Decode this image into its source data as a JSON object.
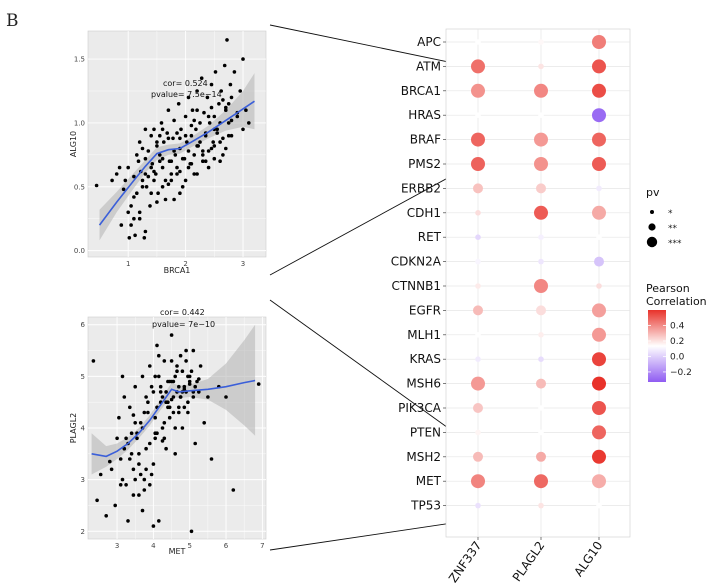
{
  "panel_label": "B",
  "chart_data": [
    {
      "type": "scatter",
      "id": "brca1-alg10",
      "xlabel": "BRCA1",
      "ylabel": "ALG10",
      "xlim": [
        0.3,
        3.4
      ],
      "ylim": [
        -0.05,
        1.72
      ],
      "xticks": [
        1,
        2,
        3
      ],
      "yticks": [
        0.0,
        0.5,
        1.0,
        1.5
      ],
      "annotations": [
        "cor= 0.524",
        "pvalue= 7.5e−14"
      ],
      "smooth_fit": {
        "x": [
          0.5,
          0.8,
          1.1,
          1.3,
          1.5,
          1.7,
          1.9,
          2.1,
          2.4,
          2.7,
          3.0,
          3.2
        ],
        "y": [
          0.2,
          0.38,
          0.55,
          0.66,
          0.76,
          0.79,
          0.8,
          0.85,
          0.93,
          1.02,
          1.11,
          1.17
        ],
        "ci_lower": [
          0.08,
          0.3,
          0.49,
          0.61,
          0.71,
          0.75,
          0.76,
          0.81,
          0.88,
          0.94,
          0.97,
          0.95
        ],
        "ci_upper": [
          0.32,
          0.46,
          0.61,
          0.71,
          0.81,
          0.83,
          0.84,
          0.89,
          0.98,
          1.1,
          1.25,
          1.39
        ],
        "color": "#3b5fd9"
      },
      "points": {
        "x": [
          0.45,
          0.72,
          0.8,
          0.85,
          0.88,
          0.92,
          0.95,
          1.0,
          1.02,
          1.05,
          1.1,
          1.12,
          1.15,
          1.18,
          1.2,
          1.22,
          1.25,
          1.28,
          1.3,
          1.32,
          1.35,
          1.38,
          1.4,
          1.42,
          1.45,
          1.48,
          1.5,
          1.52,
          1.55,
          1.58,
          1.6,
          1.62,
          1.65,
          1.68,
          1.7,
          1.72,
          1.75,
          1.78,
          1.8,
          1.82,
          1.85,
          1.88,
          1.9,
          1.92,
          1.95,
          1.98,
          2.0,
          2.02,
          2.05,
          2.08,
          2.1,
          2.12,
          2.15,
          2.18,
          2.2,
          2.22,
          2.25,
          2.28,
          2.3,
          2.32,
          2.35,
          2.38,
          2.4,
          2.42,
          2.45,
          2.48,
          2.5,
          2.52,
          2.55,
          2.58,
          2.6,
          2.62,
          2.65,
          2.68,
          2.7,
          2.72,
          2.75,
          2.78,
          2.8,
          2.85,
          2.9,
          2.95,
          3.0,
          3.05,
          3.1,
          1.05,
          1.1,
          1.2,
          1.25,
          1.35,
          1.45,
          1.55,
          1.65,
          1.75,
          1.85,
          1.95,
          2.05,
          2.15,
          2.25,
          2.35,
          2.45,
          2.55,
          2.65,
          2.75,
          1.3,
          1.4,
          1.5,
          1.6,
          1.7,
          1.8,
          1.9,
          2.0,
          2.1,
          2.2,
          2.3,
          2.4,
          2.5,
          2.6,
          2.7,
          1.15,
          1.3,
          1.45,
          1.6,
          1.75,
          1.9,
          2.05,
          2.2,
          2.35,
          2.5,
          2.65,
          2.8,
          1.0,
          1.2,
          1.4,
          1.6,
          1.8,
          2.0,
          2.2,
          2.4,
          2.6,
          2.8,
          3.0,
          1.1,
          1.3,
          1.5,
          1.7,
          1.9,
          2.1,
          2.3,
          2.5,
          2.7,
          2.9,
          1.25,
          1.55,
          1.85,
          2.15,
          2.45,
          2.75
        ],
        "y": [
          0.51,
          0.55,
          0.6,
          0.65,
          0.2,
          0.48,
          0.55,
          0.65,
          0.1,
          0.2,
          0.58,
          0.12,
          0.45,
          0.7,
          0.85,
          0.62,
          0.55,
          0.1,
          0.72,
          0.5,
          0.78,
          0.35,
          0.9,
          0.68,
          0.95,
          0.6,
          0.82,
          0.45,
          0.75,
          1.0,
          0.65,
          0.85,
          0.4,
          0.92,
          1.1,
          0.7,
          0.55,
          0.88,
          1.02,
          0.75,
          0.6,
          1.15,
          0.8,
          0.95,
          0.5,
          0.72,
          1.05,
          0.85,
          1.2,
          0.68,
          0.9,
          1.1,
          0.75,
          0.95,
          1.25,
          0.82,
          1.0,
          1.35,
          0.78,
          1.08,
          0.9,
          1.2,
          0.65,
          1.0,
          1.3,
          0.85,
          1.05,
          1.4,
          0.92,
          1.15,
          1.0,
          1.25,
          0.88,
          1.45,
          1.1,
          1.65,
          1.0,
          1.3,
          1.2,
          1.4,
          1.05,
          1.25,
          1.5,
          1.1,
          1.0,
          0.35,
          0.42,
          0.3,
          0.5,
          0.58,
          0.62,
          0.7,
          0.55,
          0.6,
          0.65,
          0.72,
          0.78,
          0.6,
          0.85,
          0.7,
          0.8,
          0.95,
          0.75,
          0.9,
          0.95,
          0.65,
          0.85,
          0.72,
          0.88,
          0.78,
          0.62,
          0.9,
          0.98,
          0.82,
          0.75,
          1.05,
          0.95,
          0.85,
          1.12,
          0.75,
          0.6,
          0.55,
          0.95,
          0.7,
          0.88,
          0.65,
          1.1,
          0.92,
          0.82,
          1.18,
          1.02,
          0.3,
          0.25,
          0.45,
          0.5,
          0.4,
          0.55,
          0.6,
          0.78,
          0.7,
          0.9,
          0.95,
          0.25,
          0.15,
          0.38,
          0.52,
          0.45,
          0.68,
          0.7,
          0.72,
          0.8,
          1.08,
          0.8,
          0.9,
          0.92,
          1.02,
          1.12,
          1.15
        ]
      }
    },
    {
      "type": "scatter",
      "id": "met-plagl2",
      "xlabel": "MET",
      "ylabel": "PLAGL2",
      "xlim": [
        2.2,
        7.1
      ],
      "ylim": [
        1.85,
        6.15
      ],
      "xticks": [
        3,
        4,
        5,
        6,
        7
      ],
      "yticks": [
        2,
        3,
        4,
        5,
        6
      ],
      "annotations": [
        "cor= 0.442",
        "pvalue= 7e−10"
      ],
      "smooth_fit": {
        "x": [
          2.3,
          2.7,
          3.0,
          3.3,
          3.6,
          3.9,
          4.2,
          4.5,
          4.7,
          5.0,
          5.5,
          6.0,
          6.5,
          6.8
        ],
        "y": [
          3.5,
          3.45,
          3.55,
          3.7,
          3.9,
          4.15,
          4.45,
          4.75,
          4.7,
          4.72,
          4.75,
          4.8,
          4.88,
          4.92
        ],
        "ci_lower": [
          3.1,
          3.25,
          3.4,
          3.58,
          3.8,
          4.05,
          4.35,
          4.62,
          4.58,
          4.6,
          4.55,
          4.35,
          4.05,
          3.85
        ],
        "ci_upper": [
          3.9,
          3.65,
          3.7,
          3.82,
          4.0,
          4.25,
          4.55,
          4.88,
          4.82,
          4.84,
          4.95,
          5.25,
          5.7,
          6.0
        ],
        "color": "#3b5fd9"
      },
      "points": {
        "x": [
          2.35,
          2.45,
          2.55,
          2.7,
          2.85,
          2.95,
          3.0,
          3.05,
          3.1,
          3.15,
          3.2,
          3.25,
          3.3,
          3.35,
          3.4,
          3.45,
          3.5,
          3.55,
          3.6,
          3.65,
          3.7,
          3.75,
          3.8,
          3.85,
          3.9,
          3.95,
          4.0,
          4.05,
          4.1,
          4.15,
          4.2,
          4.25,
          4.3,
          4.35,
          4.4,
          4.45,
          4.5,
          4.55,
          4.6,
          4.65,
          4.7,
          4.75,
          4.8,
          4.85,
          4.9,
          4.95,
          5.0,
          5.05,
          5.1,
          5.15,
          5.2,
          5.3,
          5.4,
          5.5,
          5.6,
          5.8,
          6.0,
          6.2,
          6.9,
          3.2,
          3.4,
          3.6,
          3.8,
          4.0,
          4.2,
          4.4,
          4.6,
          4.8,
          5.0,
          3.3,
          3.5,
          3.7,
          3.9,
          4.1,
          4.3,
          4.5,
          4.7,
          4.9,
          5.1,
          3.1,
          3.45,
          3.75,
          4.05,
          4.35,
          4.65,
          4.95,
          5.25,
          3.55,
          3.85,
          4.15,
          4.45,
          4.75,
          5.05,
          3.35,
          3.65,
          3.95,
          4.25,
          4.55,
          4.85,
          3.25,
          3.7,
          4.1,
          4.5,
          4.9,
          3.9,
          4.3,
          4.7,
          5.1,
          3.5,
          4.0,
          4.4,
          4.8,
          3.8,
          4.2,
          4.6,
          5.0,
          3.6,
          4.05,
          4.45,
          4.85,
          4.15,
          4.55,
          4.95,
          3.75,
          4.35,
          4.75,
          5.15,
          2.8,
          3.15,
          3.45,
          4.25,
          4.65,
          5.25,
          4.05,
          4.5
        ],
        "y": [
          5.3,
          2.6,
          3.1,
          2.3,
          3.2,
          2.5,
          3.8,
          4.2,
          3.4,
          3.0,
          4.6,
          2.9,
          3.7,
          4.4,
          3.5,
          2.7,
          4.8,
          3.9,
          3.3,
          4.1,
          5.0,
          2.8,
          3.6,
          4.3,
          5.2,
          3.1,
          4.7,
          3.8,
          5.6,
          2.2,
          4.5,
          4.0,
          5.3,
          3.6,
          4.9,
          4.2,
          5.8,
          4.6,
          3.5,
          5.1,
          4.4,
          5.4,
          4.0,
          4.8,
          5.5,
          4.3,
          5.0,
          2.0,
          4.7,
          3.7,
          4.9,
          5.2,
          4.1,
          4.6,
          3.4,
          4.8,
          4.6,
          2.8,
          4.85,
          3.6,
          3.9,
          3.5,
          4.6,
          3.3,
          4.8,
          4.5,
          5.0,
          4.7,
          4.9,
          2.2,
          3.0,
          4.0,
          3.7,
          4.4,
          4.1,
          4.9,
          4.8,
          5.3,
          4.6,
          2.9,
          3.2,
          4.3,
          4.2,
          4.7,
          5.2,
          4.5,
          4.7,
          3.8,
          4.5,
          5.0,
          4.4,
          4.6,
          5.1,
          3.4,
          3.1,
          4.8,
          4.6,
          4.9,
          4.4,
          3.8,
          2.4,
          3.9,
          5.3,
          4.7,
          2.9,
          3.8,
          4.3,
          5.5,
          4.1,
          2.1,
          4.4,
          5.1,
          3.2,
          4.7,
          4.0,
          4.85,
          2.7,
          3.9,
          4.9,
          4.75,
          5.4,
          4.3,
          5.0,
          3.0,
          4.5,
          4.6,
          4.8,
          3.35,
          5.0,
          4.25,
          3.75,
          4.7,
          4.95,
          5.0,
          4.55
        ]
      }
    },
    {
      "type": "heatmap",
      "id": "dot-matrix",
      "rows": [
        "APC",
        "ATM",
        "BRCA1",
        "HRAS",
        "BRAF",
        "PMS2",
        "ERBB2",
        "CDH1",
        "RET",
        "CDKN2A",
        "CTNNB1",
        "EGFR",
        "MLH1",
        "KRAS",
        "MSH6",
        "PIK3CA",
        "PTEN",
        "MSH2",
        "MET",
        "TP53"
      ],
      "columns": [
        "ZNF337",
        "PLAGL2",
        "ALG10"
      ],
      "correlation": [
        [
          0.0,
          0.02,
          0.38
        ],
        [
          0.42,
          0.08,
          0.5
        ],
        [
          0.32,
          0.35,
          0.52
        ],
        [
          0.0,
          0.0,
          -0.3
        ],
        [
          0.45,
          0.3,
          0.45
        ],
        [
          0.46,
          0.32,
          0.48
        ],
        [
          0.18,
          0.15,
          -0.04
        ],
        [
          0.1,
          0.48,
          0.25
        ],
        [
          -0.08,
          -0.03,
          0.0
        ],
        [
          -0.02,
          -0.05,
          -0.12
        ],
        [
          0.06,
          0.35,
          0.1
        ],
        [
          0.2,
          0.1,
          0.28
        ],
        [
          0.0,
          0.05,
          0.3
        ],
        [
          -0.04,
          -0.07,
          0.55
        ],
        [
          0.3,
          0.2,
          0.6
        ],
        [
          0.17,
          0.0,
          0.5
        ],
        [
          0.03,
          0.0,
          0.45
        ],
        [
          0.2,
          0.25,
          0.58
        ],
        [
          0.36,
          0.44,
          0.24
        ],
        [
          -0.06,
          0.08,
          0.0
        ]
      ],
      "significance": [
        [
          1,
          1,
          3
        ],
        [
          3,
          1,
          3
        ],
        [
          3,
          3,
          3
        ],
        [
          1,
          1,
          3
        ],
        [
          3,
          3,
          3
        ],
        [
          3,
          3,
          3
        ],
        [
          2,
          2,
          1
        ],
        [
          1,
          3,
          3
        ],
        [
          1,
          1,
          1
        ],
        [
          1,
          1,
          2
        ],
        [
          1,
          3,
          1
        ],
        [
          2,
          2,
          3
        ],
        [
          1,
          1,
          3
        ],
        [
          1,
          1,
          3
        ],
        [
          3,
          2,
          3
        ],
        [
          2,
          1,
          3
        ],
        [
          1,
          1,
          3
        ],
        [
          2,
          2,
          3
        ],
        [
          3,
          3,
          3
        ],
        [
          1,
          1,
          1
        ]
      ],
      "size_legend": {
        "title": "pv",
        "labels": [
          "*",
          "**",
          "***"
        ]
      },
      "color_legend": {
        "title_lines": [
          "Pearson",
          "Correlation"
        ],
        "ticks": [
          0.4,
          0.2,
          0.0,
          -0.2
        ],
        "tick_labels": [
          "0.4",
          "0.2",
          "0.0",
          "−0.2"
        ],
        "range": [
          -0.33,
          0.6
        ],
        "colors": {
          "low": "#8f5cf2",
          "mid": "#ffffff",
          "high": "#e8322a"
        }
      }
    }
  ]
}
